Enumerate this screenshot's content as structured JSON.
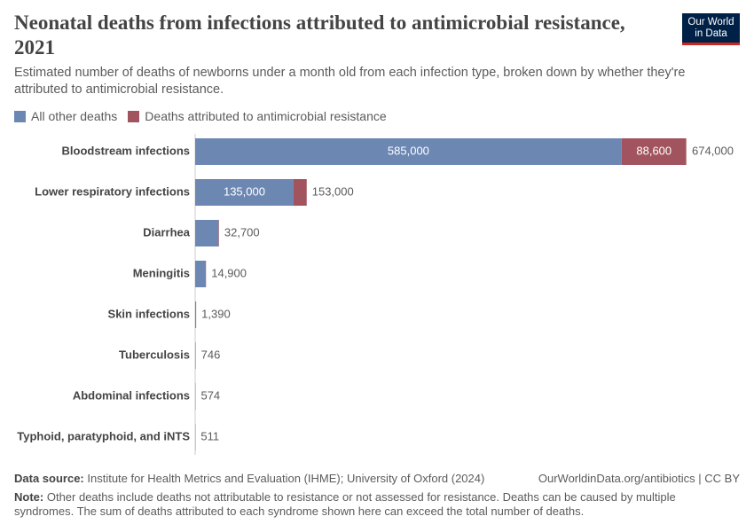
{
  "chart_data": {
    "type": "stacked-bar",
    "title": "Neonatal deaths from infections attributed to antimicrobial resistance, 2021",
    "subtitle": "Estimated number of deaths of newborns under a month old from each infection type, broken down by whether they're attributed to antimicrobial resistance.",
    "logo": "Our World in Data",
    "categories": [
      "Bloodstream infections",
      "Lower respiratory infections",
      "Diarrhea",
      "Meningitis",
      "Skin infections",
      "Tuberculosis",
      "Abdominal infections",
      "Typhoid, paratyphoid, and iNTS"
    ],
    "series": [
      {
        "name": "All other deaths",
        "color": "#6d87b3",
        "values": [
          585000,
          135000,
          32000,
          14700,
          1300,
          700,
          540,
          480
        ],
        "value_labels": [
          "585,000",
          "135,000",
          null,
          null,
          null,
          null,
          null,
          null
        ]
      },
      {
        "name": "Deaths attributed to antimicrobial resistance",
        "color": "#a2545e",
        "values": [
          88600,
          18000,
          700,
          200,
          90,
          46,
          34,
          31
        ],
        "value_labels": [
          "88,600",
          null,
          null,
          null,
          null,
          null,
          null,
          null
        ]
      }
    ],
    "totals": {
      "values": [
        674000,
        153000,
        32700,
        14900,
        1390,
        746,
        574,
        511
      ],
      "value_labels": [
        "674,000",
        "153,000",
        "32,700",
        "14,900",
        "1,390",
        "746",
        "574",
        "511"
      ]
    },
    "source_label": "Data source:",
    "source": "Institute for Health Metrics and Evaluation (IHME); University of Oxford (2024)",
    "url": "OurWorldinData.org/antibiotics | CC BY",
    "note_label": "Note:",
    "note": "Other deaths include deaths not attributable to resistance or not assessed for resistance. Deaths can be caused by multiple syndromes. The sum of deaths attributed to each syndrome shown here can exceed the total number of deaths."
  }
}
